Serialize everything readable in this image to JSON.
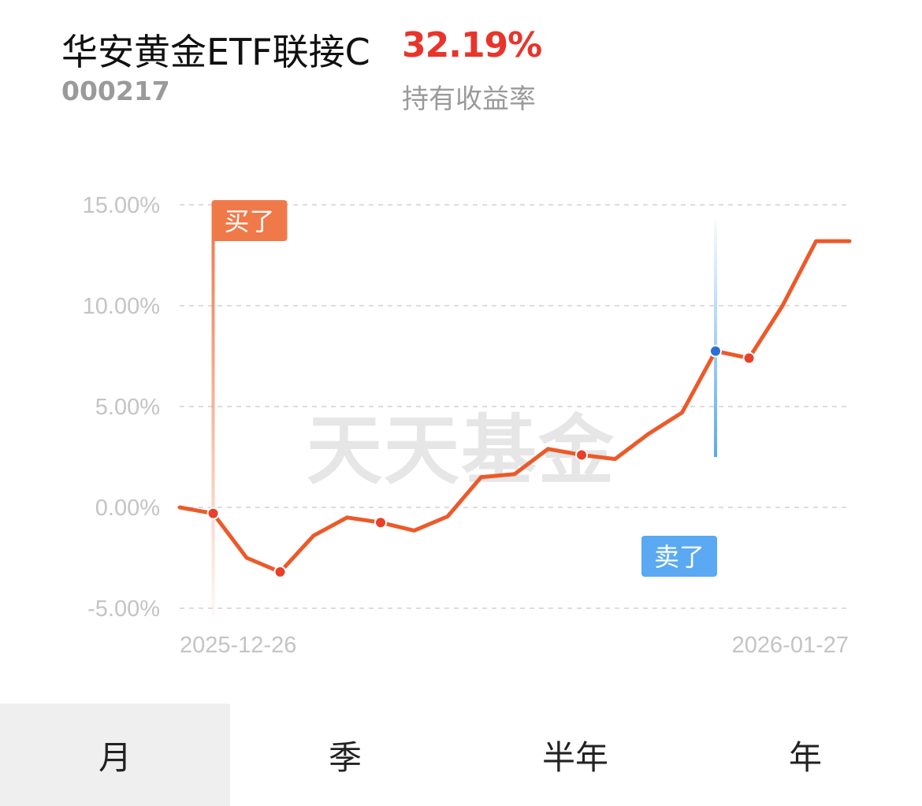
{
  "fund": {
    "name": "华安黄金ETF联接C",
    "code": "000217",
    "yield_value": "32.19%",
    "yield_label": "持有收益率"
  },
  "chart_data": {
    "type": "line",
    "watermark": "天天基金",
    "ylim": [
      -5,
      15
    ],
    "yticks": [
      "15.00%",
      "10.00%",
      "5.00%",
      "0.00%",
      "-5.00%"
    ],
    "ytick_values": [
      15,
      10,
      5,
      0,
      -5
    ],
    "x_start_label": "2025-12-26",
    "x_end_label": "2026-01-27",
    "series": [
      {
        "color": "#ec5a2a",
        "values": [
          0.0,
          -0.3,
          -2.5,
          -3.2,
          -1.4,
          -0.5,
          -0.75,
          -1.15,
          -0.45,
          1.5,
          1.65,
          2.9,
          2.6,
          2.4,
          3.65,
          4.7,
          7.75,
          7.4,
          10.0,
          13.2,
          13.2
        ],
        "highlight_indices": [
          1,
          3,
          6,
          12,
          17
        ]
      }
    ],
    "markers": [
      {
        "type": "buy",
        "label": "买了",
        "index": 1,
        "color": "#f0794a"
      },
      {
        "type": "sell",
        "label": "卖了",
        "index": 16,
        "color": "#5aa9f2"
      }
    ]
  },
  "tabs": [
    {
      "label": "月",
      "active": true
    },
    {
      "label": "季",
      "active": false
    },
    {
      "label": "半年",
      "active": false
    },
    {
      "label": "年",
      "active": false
    }
  ]
}
